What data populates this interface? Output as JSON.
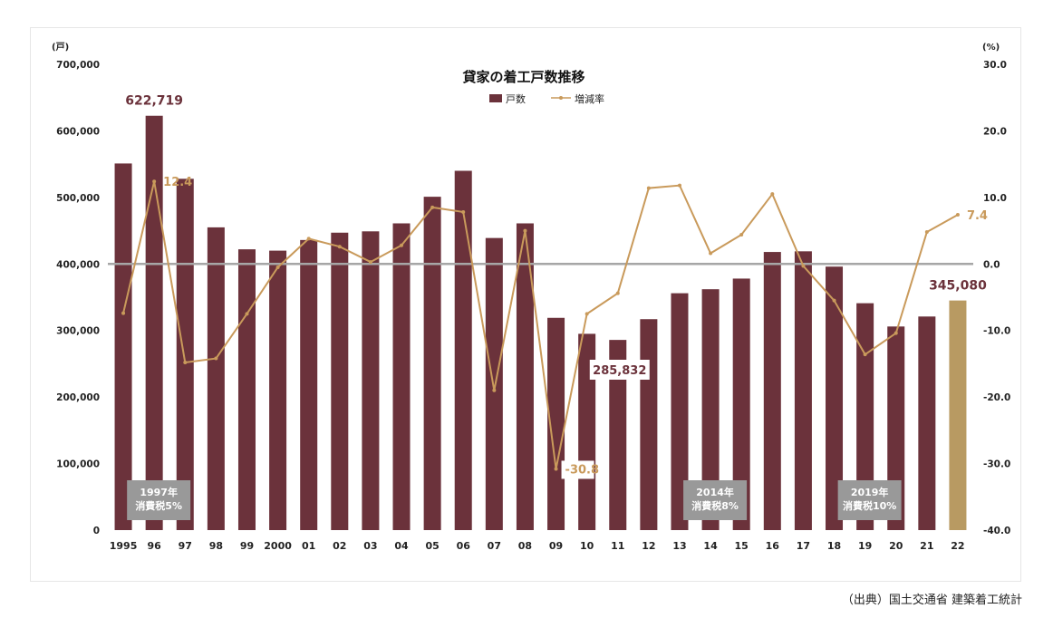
{
  "source_note": "（出典）国土交通省 建築着工統計",
  "chart_data": {
    "type": "bar",
    "title": "貸家の着工戸数推移",
    "left_unit": "(戸)",
    "right_unit": "(%)",
    "legend": {
      "bar_label": "戸数",
      "line_label": "増減率",
      "placement": "top-center"
    },
    "categories": [
      "1995",
      "96",
      "97",
      "98",
      "99",
      "2000",
      "01",
      "02",
      "03",
      "04",
      "05",
      "06",
      "07",
      "08",
      "09",
      "10",
      "11",
      "12",
      "13",
      "14",
      "15",
      "16",
      "17",
      "18",
      "19",
      "20",
      "21",
      "22"
    ],
    "y_left_ticks": [
      "0",
      "100,000",
      "200,000",
      "300,000",
      "400,000",
      "500,000",
      "600,000",
      "700,000"
    ],
    "y_right_ticks": [
      "30.0",
      "20.0",
      "10.0",
      "0.0",
      "-10.0",
      "-20.0",
      "-30.0",
      "-40.0"
    ],
    "ylim_left": [
      0,
      700000
    ],
    "ylim_right": [
      -40,
      30
    ],
    "series": [
      {
        "name": "戸数",
        "type": "bar",
        "values": [
          551000,
          622719,
          528000,
          455000,
          422000,
          420000,
          436000,
          447000,
          449000,
          461000,
          501000,
          540000,
          439000,
          461000,
          319000,
          295000,
          285832,
          317000,
          356000,
          362000,
          378000,
          418000,
          419000,
          396000,
          341000,
          306000,
          321000,
          345080
        ],
        "color": "#6b323b",
        "highlight_color": "#b89a62",
        "highlight_index": 27
      },
      {
        "name": "増減率",
        "type": "line",
        "values": [
          -7.4,
          12.4,
          -14.8,
          -14.2,
          -7.5,
          -0.5,
          3.8,
          2.6,
          0.3,
          2.8,
          8.5,
          7.8,
          -19.0,
          5.0,
          -30.8,
          -7.5,
          -4.4,
          11.4,
          11.8,
          1.6,
          4.4,
          10.5,
          -0.3,
          -5.5,
          -13.6,
          -10.4,
          4.8,
          7.4
        ],
        "color": "#c99a5b"
      }
    ],
    "data_labels": [
      {
        "text": "622,719",
        "series": "戸数",
        "index": 1
      },
      {
        "text": "285,832",
        "series": "戸数",
        "index": 16
      },
      {
        "text": "345,080",
        "series": "戸数",
        "index": 27
      },
      {
        "text": "12.4",
        "series": "増減率",
        "index": 1
      },
      {
        "text": "-30.8",
        "series": "増減率",
        "index": 14
      },
      {
        "text": "7.4",
        "series": "増減率",
        "index": 27
      }
    ],
    "annotations": [
      {
        "lines": [
          "1997年",
          "消費税5%"
        ],
        "index": 1
      },
      {
        "lines": [
          "2014年",
          "消費税8%"
        ],
        "index": 19
      },
      {
        "lines": [
          "2019年",
          "消費税10%"
        ],
        "index": 24
      }
    ],
    "zero_line": true,
    "grid": false
  }
}
